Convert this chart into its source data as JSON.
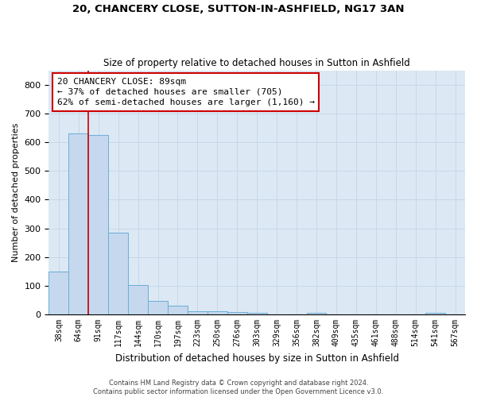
{
  "title1": "20, CHANCERY CLOSE, SUTTON-IN-ASHFIELD, NG17 3AN",
  "title2": "Size of property relative to detached houses in Sutton in Ashfield",
  "xlabel": "Distribution of detached houses by size in Sutton in Ashfield",
  "ylabel": "Number of detached properties",
  "categories": [
    "38sqm",
    "64sqm",
    "91sqm",
    "117sqm",
    "144sqm",
    "170sqm",
    "197sqm",
    "223sqm",
    "250sqm",
    "276sqm",
    "303sqm",
    "329sqm",
    "356sqm",
    "382sqm",
    "409sqm",
    "435sqm",
    "461sqm",
    "488sqm",
    "514sqm",
    "541sqm",
    "567sqm"
  ],
  "values": [
    150,
    630,
    625,
    285,
    103,
    47,
    30,
    10,
    10,
    8,
    5,
    0,
    0,
    7,
    0,
    0,
    0,
    0,
    0,
    7,
    0
  ],
  "bar_color": "#c5d8ee",
  "bar_edge_color": "#6baed6",
  "property_line_x": 2.0,
  "annotation_line1": "20 CHANCERY CLOSE: 89sqm",
  "annotation_line2": "← 37% of detached houses are smaller (705)",
  "annotation_line3": "62% of semi-detached houses are larger (1,160) →",
  "annotation_box_color": "#ffffff",
  "annotation_box_edge_color": "#cc0000",
  "property_vline_color": "#cc0000",
  "ylim": [
    0,
    850
  ],
  "yticks": [
    0,
    100,
    200,
    300,
    400,
    500,
    600,
    700,
    800
  ],
  "footer1": "Contains HM Land Registry data © Crown copyright and database right 2024.",
  "footer2": "Contains public sector information licensed under the Open Government Licence v3.0.",
  "grid_color": "#c8d8e8",
  "background_color": "#dce8f4"
}
